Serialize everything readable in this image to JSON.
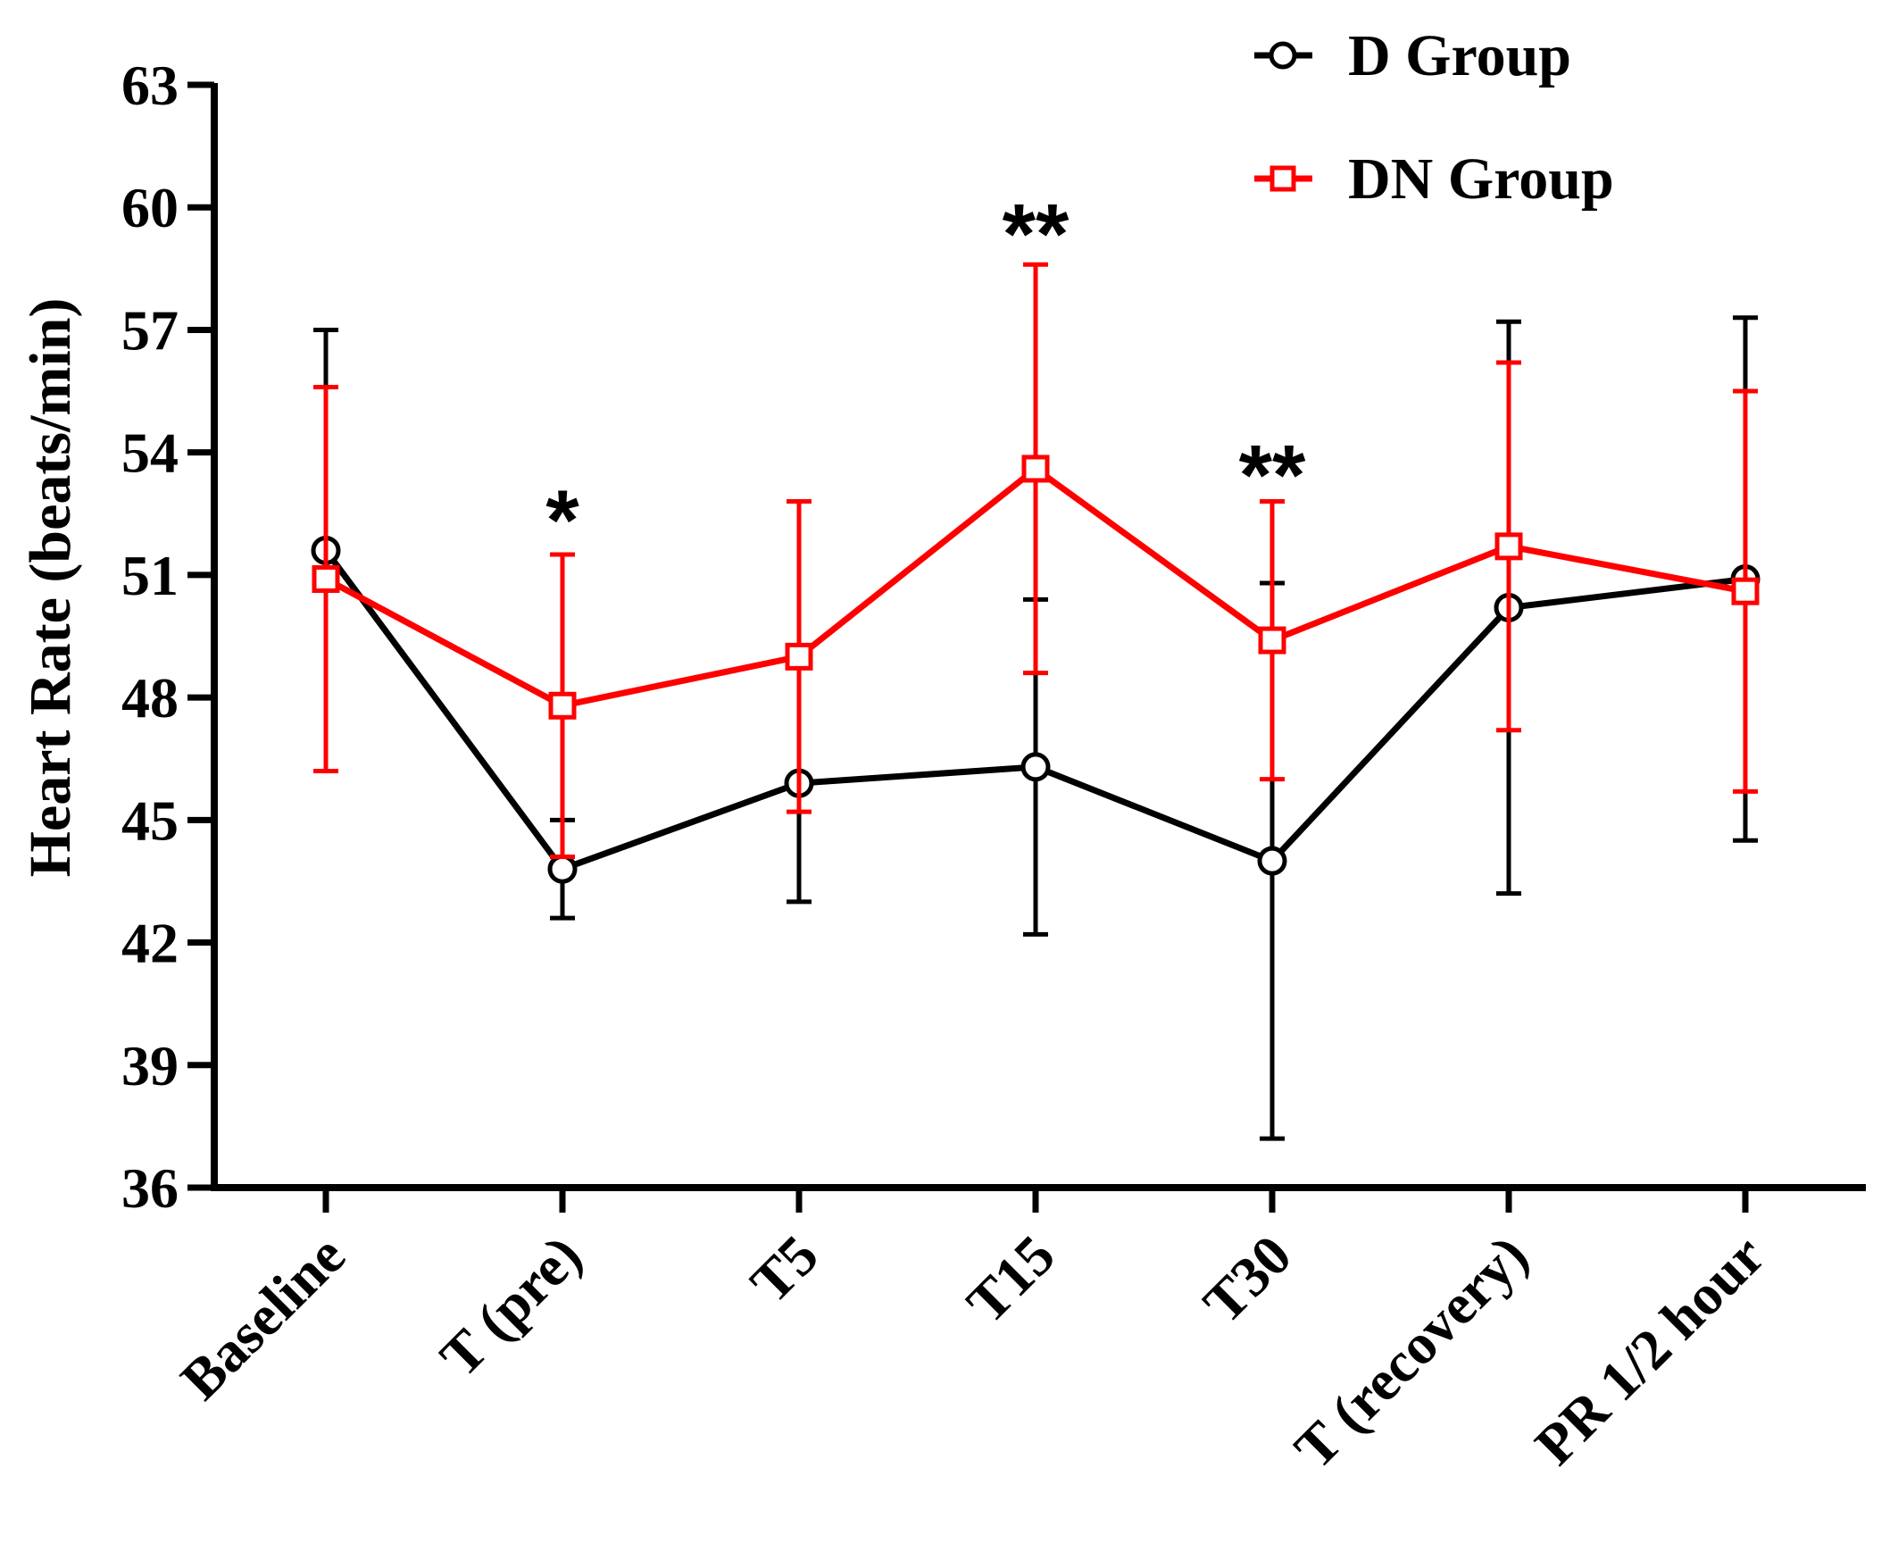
{
  "chart_data": {
    "type": "line",
    "title": "",
    "xlabel": "",
    "ylabel": "Heart Rate (beats/min)",
    "ylim": [
      36,
      63
    ],
    "yticks": [
      36,
      39,
      42,
      45,
      48,
      51,
      54,
      57,
      60,
      63
    ],
    "grid": false,
    "legend_position": "top-right",
    "categories": [
      "Baseline",
      "T (pre)",
      "T5",
      "T15",
      "T30",
      "T (recovery)",
      "PR 1/2 hour"
    ],
    "series": [
      {
        "name": "D Group",
        "color": "#000000",
        "marker": "circle",
        "values": [
          51.6,
          43.8,
          45.9,
          46.3,
          44.0,
          50.2,
          50.9
        ],
        "error": [
          5.4,
          1.2,
          2.9,
          4.1,
          6.8,
          7.0,
          6.4
        ]
      },
      {
        "name": "DN Group",
        "color": "#ff0000",
        "marker": "square",
        "values": [
          50.9,
          47.8,
          49.0,
          53.6,
          49.4,
          51.7,
          50.6
        ],
        "error": [
          4.7,
          3.7,
          3.8,
          5.0,
          3.4,
          4.5,
          4.9
        ]
      }
    ],
    "annotations": [
      {
        "category": "T (pre)",
        "text": "*",
        "y": 52.5
      },
      {
        "category": "T15",
        "text": "**",
        "y": 59.5
      },
      {
        "category": "T30",
        "text": "**",
        "y": 53.6
      }
    ]
  }
}
